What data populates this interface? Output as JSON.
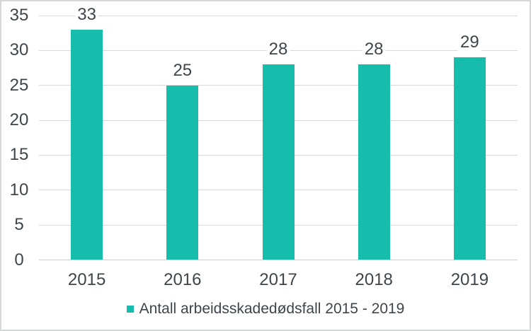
{
  "chart_data": {
    "type": "bar",
    "title": "",
    "categories": [
      "2015",
      "2016",
      "2017",
      "2018",
      "2019"
    ],
    "series": [
      {
        "name": "Antall arbeidsskadedødsfall 2015 - 2019",
        "values": [
          33,
          25,
          28,
          28,
          29
        ]
      }
    ],
    "data_labels": [
      33,
      25,
      28,
      28,
      29
    ],
    "xlabel": "",
    "ylabel": "",
    "ylim": [
      0,
      35
    ],
    "yticks": [
      0,
      5,
      10,
      15,
      20,
      25,
      30,
      35
    ],
    "grid": "horizontal",
    "legend_position": "bottom-center",
    "colors": {
      "bar": "#17BDAC",
      "text": "#3E454B",
      "grid": "#D9D9D9",
      "baseline": "#CDCDCD",
      "chart_border": "#D5D7D9",
      "background": "#FFFFFF"
    }
  }
}
